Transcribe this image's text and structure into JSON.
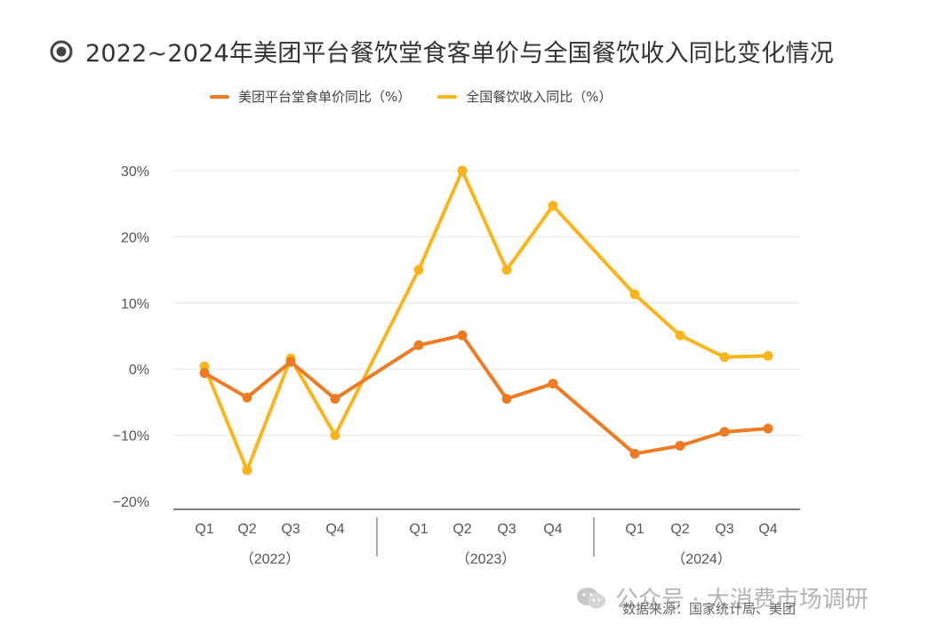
{
  "title": "2022~2024年美团平台餐饮堂食客单价与全国餐饮收入同比变化情况",
  "legend": {
    "series1": "美团平台堂食单价同比（%）",
    "series2": "全国餐饮收入同比（%）"
  },
  "colors": {
    "series1": "#ee7a22",
    "series2": "#fbb41c",
    "grid": "#e6e6e6",
    "axis": "#333333",
    "tick_text": "#555555"
  },
  "chart_data": {
    "type": "line",
    "categories": [
      "Q1",
      "Q2",
      "Q3",
      "Q4",
      "Q1",
      "Q2",
      "Q3",
      "Q4",
      "Q1",
      "Q2",
      "Q3",
      "Q4"
    ],
    "groups": [
      {
        "label": "（2022）",
        "quarters": 4
      },
      {
        "label": "（2023）",
        "quarters": 4
      },
      {
        "label": "（2024）",
        "quarters": 4
      }
    ],
    "series": [
      {
        "name": "美团平台堂食单价同比（%）",
        "values": [
          -0.6,
          -4.3,
          1.1,
          -4.5,
          3.6,
          5.1,
          -4.5,
          -2.2,
          -12.8,
          -11.6,
          -9.5,
          -9.0
        ]
      },
      {
        "name": "全国餐饮收入同比（%）",
        "values": [
          0.4,
          -15.3,
          1.6,
          -10.0,
          15.0,
          30.0,
          15.0,
          24.7,
          11.3,
          5.1,
          1.8,
          2.0
        ]
      }
    ],
    "yticks": [
      "30%",
      "20%",
      "10%",
      "0%",
      "−10%",
      "−20%"
    ],
    "ytick_values": [
      30,
      20,
      10,
      0,
      -10,
      -20
    ],
    "ylim": [
      -20,
      30
    ],
    "grid": true,
    "legend_position": "top-left"
  },
  "watermark": {
    "account": "公众号 · 大消费市场调研",
    "source": "数据来源：国家统计局、美团"
  }
}
